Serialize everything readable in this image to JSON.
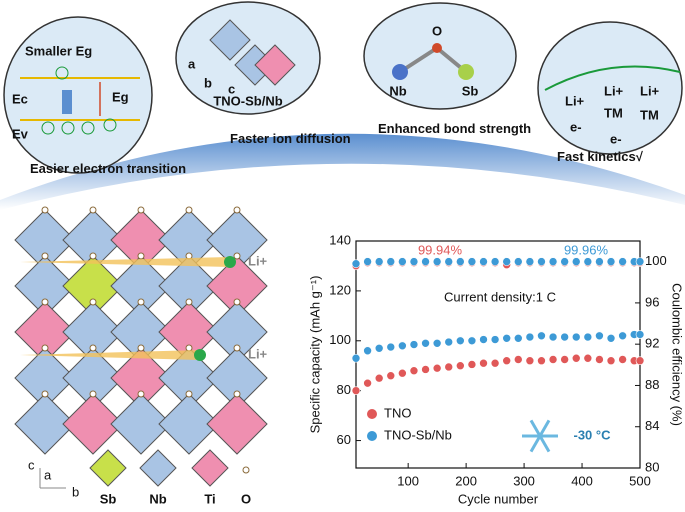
{
  "diagram": {
    "panels": [
      {
        "labels": [
          "Smaller Eg",
          "Ec",
          "Eg",
          "Ev"
        ]
      },
      {
        "labels": [
          "a",
          "b",
          "c",
          "TNO-Sb/Nb"
        ]
      },
      {
        "labels": [
          "O",
          "Nb",
          "Sb"
        ]
      },
      {
        "labels": [
          "Li+",
          "Li+",
          "Li+",
          "TM",
          "TM",
          "e-",
          "e-"
        ]
      }
    ],
    "captions": [
      "Easier electron transition",
      "Faster ion diffusion",
      "Enhanced bond strength",
      "Fast kinetics√"
    ],
    "structure": {
      "ion_labels": [
        "Li+",
        "Li+"
      ],
      "axes": [
        "c",
        "a",
        "b"
      ],
      "legend": [
        "Sb",
        "Nb",
        "Ti",
        "O"
      ]
    }
  },
  "chart_data": {
    "type": "scatter",
    "x_label": "Cycle number",
    "y_label": "Specific capacity (mAh g⁻¹)",
    "y2_label": "Coulombic efficiency (%)",
    "xlim": [
      10,
      500
    ],
    "xticks": [
      100,
      200,
      300,
      400,
      500
    ],
    "ylim": [
      49,
      140
    ],
    "yticks": [
      60,
      80,
      100,
      120,
      140
    ],
    "y2lim": [
      80,
      102
    ],
    "y2ticks": [
      80,
      84,
      88,
      92,
      96,
      100
    ],
    "annotations": [
      "99.94%",
      "99.96%",
      "Current density:1 C",
      "-30 °C"
    ],
    "x": [
      10,
      30,
      50,
      70,
      90,
      110,
      130,
      150,
      170,
      190,
      210,
      230,
      250,
      270,
      290,
      310,
      330,
      350,
      370,
      390,
      410,
      430,
      450,
      470,
      490,
      500
    ],
    "series": [
      {
        "name": "TNO",
        "color": "#e05858",
        "values": [
          80,
          83,
          85,
          86,
          87,
          88,
          88.5,
          89,
          89.5,
          90,
          90.5,
          91,
          91,
          92,
          92.5,
          92,
          92,
          92.5,
          92.5,
          93,
          93,
          92.5,
          92,
          92.5,
          92,
          92
        ]
      },
      {
        "name": "TNO-Sb/Nb",
        "color": "#3d9ad6",
        "values": [
          93,
          96,
          97,
          97.5,
          98,
          98.5,
          99,
          99,
          99.5,
          100,
          100,
          100.5,
          100.5,
          101,
          101,
          101.5,
          102,
          101.5,
          101.5,
          101.5,
          101.5,
          102,
          101,
          102,
          102.5,
          102.5
        ]
      },
      {
        "name": "TNO",
        "color": "#e05858",
        "axis": "y2",
        "values": [
          99.6,
          99.9,
          99.9,
          99.9,
          99.9,
          99.9,
          99.9,
          99.9,
          99.9,
          99.9,
          99.9,
          99.9,
          99.9,
          99.7,
          99.9,
          99.9,
          99.9,
          99.9,
          99.9,
          99.9,
          99.9,
          99.9,
          99.9,
          99.9,
          99.9,
          99.9
        ]
      },
      {
        "name": "TNO-Sb/Nb",
        "color": "#3d9ad6",
        "axis": "y2",
        "values": [
          99.8,
          100,
          100,
          100,
          100,
          100,
          100,
          100,
          100,
          100,
          100,
          100,
          100,
          100,
          100,
          100,
          100,
          100,
          100,
          100,
          100,
          100,
          100,
          100,
          100,
          100
        ]
      }
    ]
  }
}
